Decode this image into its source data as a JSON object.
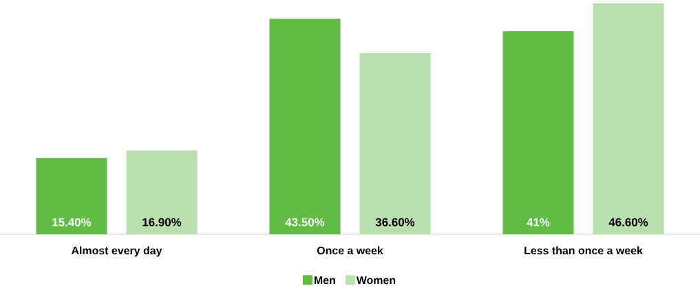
{
  "chart_data": {
    "type": "bar",
    "categories": [
      "Almost every day",
      "Once a week",
      "Less than once a week"
    ],
    "series": [
      {
        "name": "Men",
        "color": "#62bb47",
        "values": [
          15.4,
          43.5,
          41
        ],
        "value_labels": [
          "15.40%",
          "43.50%",
          "41%"
        ]
      },
      {
        "name": "Women",
        "color": "#bbe0b0",
        "values": [
          16.9,
          36.6,
          46.6
        ],
        "value_labels": [
          "16.90%",
          "36.60%",
          "46.60%"
        ]
      }
    ],
    "legend": "bottom"
  }
}
